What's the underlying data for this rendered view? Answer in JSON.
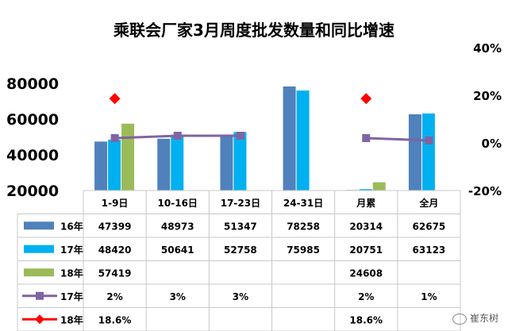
{
  "chart_data": {
    "type": "bar",
    "title": "乘联会厂家3月周度批发数量和同比增速",
    "categories": [
      "1-9日",
      "10-16日",
      "17-23日",
      "24-31日",
      "月累",
      "全月"
    ],
    "series": [
      {
        "name": "16年",
        "type": "bar",
        "axis": "left",
        "color": "#4f81bd",
        "values": [
          47399,
          48973,
          51347,
          78258,
          20314,
          62675
        ],
        "labels": [
          "47399",
          "48973",
          "51347",
          "78258",
          "20314",
          "62675"
        ]
      },
      {
        "name": "17年",
        "type": "bar",
        "axis": "left",
        "color": "#00b0f0",
        "values": [
          48420,
          50641,
          52758,
          75985,
          20751,
          63123
        ],
        "labels": [
          "48420",
          "50641",
          "52758",
          "75985",
          "20751",
          "63123"
        ]
      },
      {
        "name": "18年",
        "type": "bar",
        "axis": "left",
        "color": "#9bbb59",
        "values": [
          57419,
          null,
          null,
          null,
          24608,
          null
        ],
        "labels": [
          "57419",
          "",
          "",
          "",
          "24608",
          ""
        ]
      },
      {
        "name": "17年",
        "type": "line",
        "axis": "right",
        "color": "#8064a2",
        "values": [
          2,
          3,
          3,
          null,
          2,
          1
        ],
        "labels": [
          "2%",
          "3%",
          "3%",
          "",
          "2%",
          "1%"
        ]
      },
      {
        "name": "18年",
        "type": "scatter",
        "axis": "right",
        "color": "#ff0000",
        "values": [
          18.6,
          null,
          null,
          null,
          18.6,
          null
        ],
        "labels": [
          "18.6%",
          "",
          "",
          "",
          "18.6%",
          ""
        ]
      }
    ],
    "left_axis": {
      "ticks": [
        "20000",
        "40000",
        "60000",
        "80000"
      ],
      "range": [
        20000,
        100000
      ]
    },
    "right_axis": {
      "ticks": [
        "-20%",
        "0%",
        "20%",
        "40%"
      ],
      "range": [
        -20,
        40
      ]
    },
    "data_table": true,
    "legend": "data-table"
  },
  "watermark": {
    "text": "崔东树"
  },
  "colors": {
    "bar16": "#4f81bd",
    "bar17": "#00b0f0",
    "bar18": "#9bbb59",
    "line17": "#8064a2",
    "marker18": "#ff0000"
  }
}
